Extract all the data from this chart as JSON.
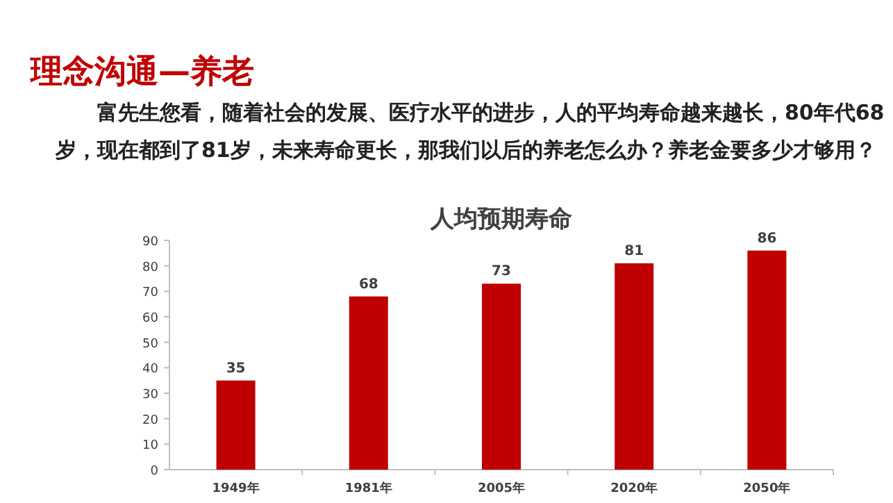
{
  "chart_data": {
    "type": "bar",
    "title": "人均预期寿命",
    "annotations": [
      "理念沟通—养老",
      "富先生您看，随着社会的发展、医疗水平的进步，人的平均寿命越来越长，80年代68岁，现在都到了81岁，未来寿命更长，那我们以后的养老怎么办？养老金要多少才够用？"
    ],
    "categories": [
      "1949年",
      "1981年",
      "2005年",
      "2020年",
      "2050年"
    ],
    "values": [
      35,
      68,
      73,
      81,
      86
    ],
    "color": "#c00000",
    "ylim": [
      0,
      90
    ],
    "yticks": [
      0,
      10,
      20,
      30,
      40,
      50,
      60,
      70,
      80,
      90
    ],
    "data_labels": true,
    "grid": false
  }
}
